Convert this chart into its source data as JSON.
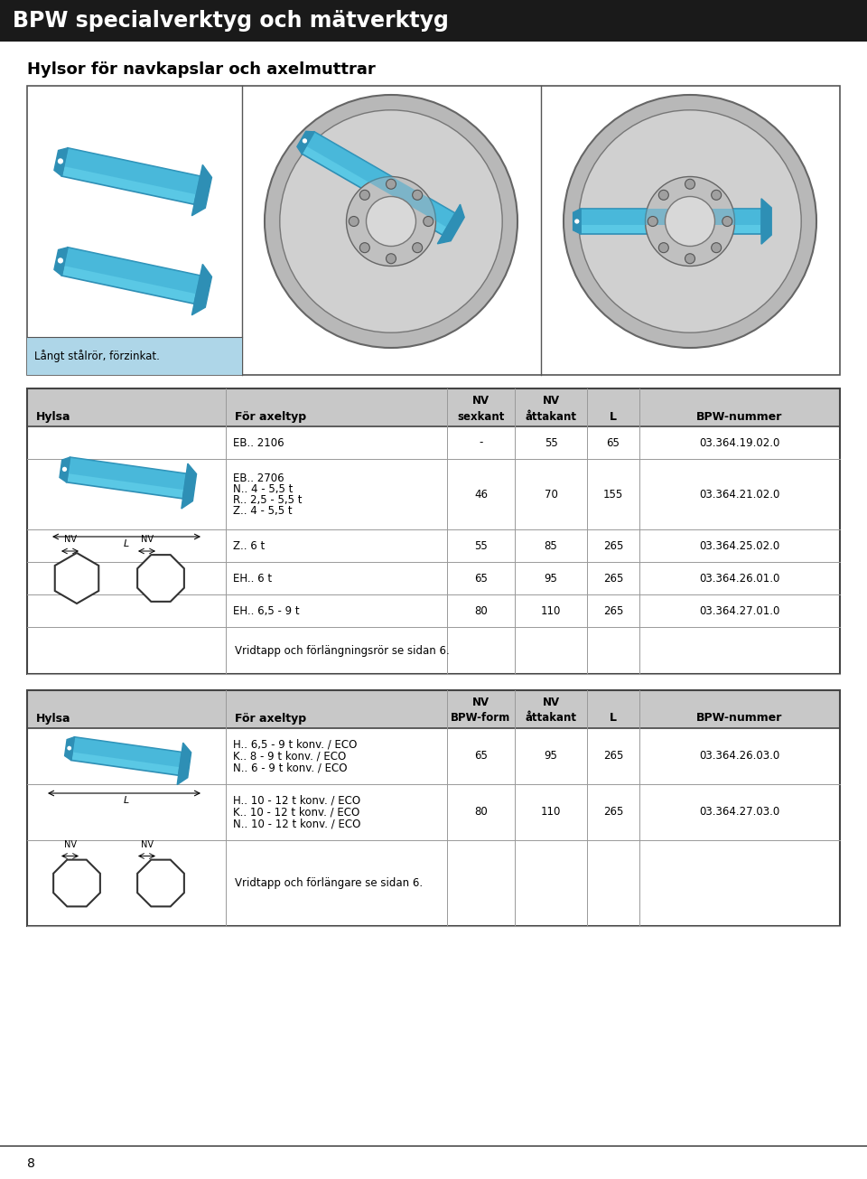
{
  "page_bg": "#ffffff",
  "header_bg": "#1a1a1a",
  "header_text": "BPW specialverktyg och mätverktyg",
  "header_text_color": "#ffffff",
  "section_title": "Hylsor för navkapslar och axelmuttrar",
  "table1_header_bg": "#c8c8c8",
  "table2_header_bg": "#c8c8c8",
  "table1_header_row2": [
    "Hylsa",
    "För axeltyp",
    "sexkant",
    "åttakant",
    "L",
    "BPW-nummer"
  ],
  "table1_rows": [
    [
      "EB.. 2106",
      "-",
      "55",
      "65",
      "03.364.19.02.0"
    ],
    [
      "EB.. 2706\nN.. 4 - 5,5 t\nR.. 2,5 - 5,5 t\nZ.. 4 - 5,5 t",
      "46",
      "70",
      "155",
      "03.364.21.02.0"
    ],
    [
      "Z.. 6 t",
      "55",
      "85",
      "265",
      "03.364.25.02.0"
    ],
    [
      "EH.. 6 t",
      "65",
      "95",
      "265",
      "03.364.26.01.0"
    ],
    [
      "EH.. 6,5 - 9 t",
      "80",
      "110",
      "265",
      "03.364.27.01.0"
    ]
  ],
  "table1_note": "Vridtapp och förlängningsrör se sidan 6.",
  "table2_header_row2": [
    "Hylsa",
    "För axeltyp",
    "BPW-form",
    "åttakant",
    "L",
    "BPW-nummer"
  ],
  "table2_rows": [
    [
      "H.. 6,5 - 9 t konv. / ECO\nK.. 8 - 9 t konv. / ECO\nN.. 6 - 9 t konv. / ECO",
      "65",
      "95",
      "265",
      "03.364.26.03.0"
    ],
    [
      "H.. 10 - 12 t konv. / ECO\nK.. 10 - 12 t konv. / ECO\nN.. 10 - 12 t konv. / ECO",
      "80",
      "110",
      "265",
      "03.364.27.03.0"
    ]
  ],
  "table2_note": "Vridtapp och förlängare se sidan 6.",
  "page_number": "8",
  "image_caption": "Långt stålrör, förzinkat.",
  "socket_blue": "#5ac8e5",
  "socket_dark": "#2e8fb5",
  "socket_mid": "#3aaad0",
  "wheel_grey": "#c8c8c8",
  "wheel_light": "#e0e0e0",
  "wheel_dark": "#888888"
}
